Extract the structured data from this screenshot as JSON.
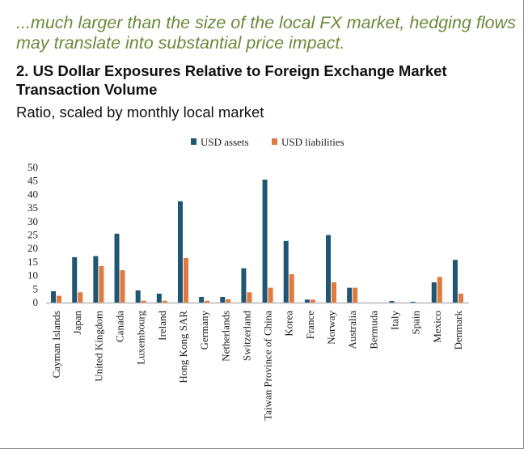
{
  "header": {
    "subtitle": "...much larger than the size of the local FX market, hedging flows may translate into substantial price impact.",
    "title": "2. US Dollar Exposures Relative to Foreign Exchange Market Transaction Volume",
    "caption": "Ratio, scaled by monthly local market"
  },
  "chart_data": {
    "type": "bar",
    "categories": [
      "Cayman Islands",
      "Japan",
      "United Kingdom",
      "Canada",
      "Luxembourg",
      "Ireland",
      "Hong Kong SAR",
      "Germany",
      "Netherlands",
      "Switzerland",
      "Taiwan Province of China",
      "Korea",
      "France",
      "Norway",
      "Australia",
      "Bermuda",
      "Italy",
      "Spain",
      "Mexico",
      "Denmark"
    ],
    "series": [
      {
        "name": "USD assets",
        "color": "#1f5673",
        "values": [
          4.2,
          16.8,
          17.2,
          25.5,
          4.5,
          3.3,
          37.5,
          2.1,
          2.1,
          12.7,
          45.5,
          22.8,
          1.1,
          25,
          5.5,
          0,
          0.6,
          0.3,
          7.5,
          15.8
        ]
      },
      {
        "name": "USD liabilities",
        "color": "#e07b40",
        "values": [
          2.5,
          3.8,
          13.5,
          12,
          0.7,
          0.7,
          16.5,
          0.7,
          1.2,
          3.8,
          5.5,
          10.5,
          1.1,
          7.5,
          5.5,
          0,
          0,
          0,
          9.5,
          3.3
        ]
      }
    ],
    "ylim": [
      0,
      50
    ],
    "yticks": [
      "0",
      "5",
      "10",
      "15",
      "20",
      "25",
      "30",
      "35",
      "40",
      "45",
      "50"
    ],
    "grid": false,
    "legend": "top"
  }
}
